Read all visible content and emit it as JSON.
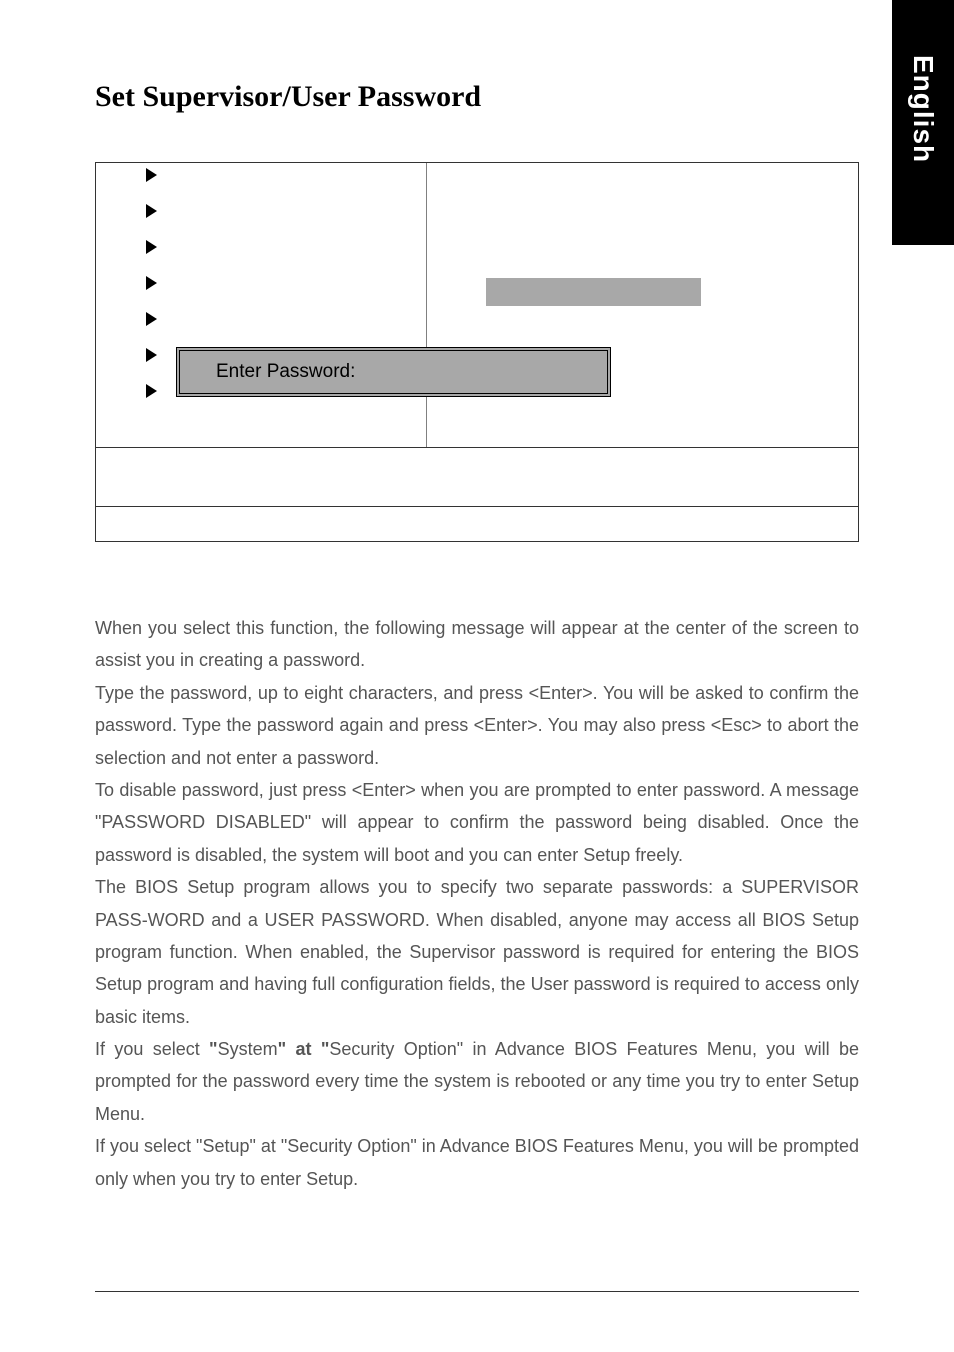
{
  "sideTab": "English",
  "heading": "Set Supervisor/User Password",
  "biosBox": {
    "passwordPrompt": "Enter Password:",
    "arrowCount": 7
  },
  "paragraphs": {
    "p1": "When you select this function, the following message will appear at the center of the screen to assist you in creating a password.",
    "p2": "Type the password, up to eight characters, and press <Enter>. You will be asked to confirm the password. Type the password again and press <Enter>. You may also press <Esc> to abort the selection and not enter a password.",
    "p3_a": "To disable password, just press <Enter> when you are prompted to enter password. A message \"PASSWORD DISABLED",
    "p3_b": "\" will appear to confirm the password being disabled. Once the password is disabled, the system will boot and you can enter Setup freely.",
    "p4_a": "The BIOS Setup program allows you to specify two separate passwords: a SUPERVISOR PASS-WORD and a USER PASSWORD",
    "p4_b": ". When disabled, anyone may access all BIOS Setup program function. When enabled, the Supervisor password is required for entering the BIOS Setup program and having full configuration fields, the User password is required to access only basic items.",
    "p5_a": "If you select ",
    "p5_b": "\"",
    "p5_c": "System",
    "p5_d": "\" at \"",
    "p5_e": "Security Option",
    "p5_f": "\" in Advance BIOS Features Menu, you will be prompted for the password every time the system is rebooted or any time you try to enter Setup Menu.",
    "p6": "If you select \"Setup\" at \"Security Option\" in Advance BIOS Features Menu, you will be prompted only when you try to enter Setup."
  },
  "colors": {
    "sideTabBg": "#000000",
    "sideTabText": "#ffffff",
    "grayFill": "#a8a8a8",
    "bodyText": "#555555",
    "headingColor": "#000000"
  }
}
